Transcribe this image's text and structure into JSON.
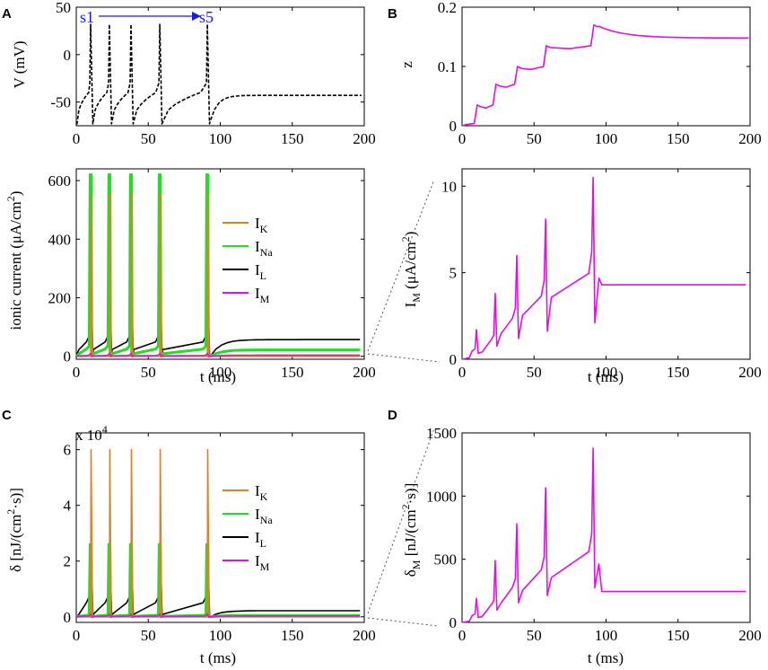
{
  "colors": {
    "IK": "#d9822b",
    "INa": "#22dd22",
    "IL": "#000000",
    "IM": "#e011e0",
    "annot": "#1a1aee",
    "V": "#000000"
  },
  "chart_data": [
    {
      "id": "A_top",
      "panel": "A",
      "type": "line",
      "title": "",
      "xlabel": "",
      "ylabel": "V (mV)",
      "xlim": [
        0,
        200
      ],
      "ylim": [
        -75,
        50
      ],
      "xticks": [
        "0",
        "50",
        "100",
        "150",
        "200"
      ],
      "yticks": [
        "-50",
        "0",
        "50"
      ],
      "spike_times": [
        10,
        23,
        38,
        58,
        91
      ],
      "series": [
        {
          "name": "V",
          "style": "dashed",
          "peak": 32,
          "trough": -73,
          "rest": -43
        }
      ],
      "annotation": {
        "start": "s1",
        "end": "s5"
      }
    },
    {
      "id": "A_bottom",
      "panel": "A",
      "type": "line",
      "xlabel": "t (ms)",
      "ylabel": "ionic current (μA/cm²)",
      "ylabel_parts": [
        "ionic current (",
        "μ",
        "A/cm",
        "2",
        ")"
      ],
      "xlim": [
        0,
        200
      ],
      "ylim": [
        -10,
        640
      ],
      "xticks": [
        "0",
        "50",
        "100",
        "150",
        "200"
      ],
      "yticks": [
        "0",
        "200",
        "400",
        "600"
      ],
      "series": [
        {
          "name": "IK",
          "label": "I",
          "sub": "K",
          "peak": 555,
          "steady": 0
        },
        {
          "name": "INa",
          "label": "I",
          "sub": "Na",
          "peak": 620,
          "steady": 22
        },
        {
          "name": "IL",
          "label": "I",
          "sub": "L",
          "peak": 200,
          "steady": 57
        },
        {
          "name": "IM",
          "label": "I",
          "sub": "M",
          "peak": 10,
          "steady": 4
        }
      ]
    },
    {
      "id": "B_top",
      "panel": "B",
      "type": "line",
      "xlabel": "",
      "ylabel": "z",
      "xlim": [
        0,
        200
      ],
      "ylim": [
        0,
        0.2
      ],
      "xticks": [
        "0",
        "50",
        "100",
        "150",
        "200"
      ],
      "yticks": [
        "0",
        "0.1",
        "0.2"
      ],
      "series": [
        {
          "name": "z",
          "steps": [
            0.035,
            0.07,
            0.1,
            0.135,
            0.17
          ],
          "final": 0.148
        }
      ]
    },
    {
      "id": "B_bottom",
      "panel": "B",
      "type": "line",
      "xlabel": "t (ms)",
      "ylabel": "IM (μA/cm²)",
      "ylabel_parts": [
        "I",
        "M",
        " (",
        "μ",
        "A/cm",
        "2",
        ")"
      ],
      "xlim": [
        0,
        200
      ],
      "ylim": [
        0,
        11
      ],
      "xticks": [
        "0",
        "50",
        "100",
        "150",
        "200"
      ],
      "yticks": [
        "0",
        "5",
        "10"
      ],
      "series": [
        {
          "name": "IM",
          "peaks": [
            1.7,
            3.8,
            6.0,
            8.1,
            10.5
          ],
          "final": 4.3
        }
      ]
    },
    {
      "id": "C",
      "panel": "C",
      "type": "line",
      "xlabel": "t (ms)",
      "ylabel": "δ [nJ/(cm²·s)]",
      "ylabel_parts": [
        "δ [nJ/(cm",
        "2",
        "·s)]"
      ],
      "multiplier": "x 10^4",
      "multiplier_parts": [
        "x 10",
        "4"
      ],
      "xlim": [
        0,
        200
      ],
      "ylim": [
        -0.2,
        6.6
      ],
      "xticks": [
        "0",
        "50",
        "100",
        "150",
        "200"
      ],
      "yticks": [
        "0",
        "2",
        "4",
        "6"
      ],
      "series": [
        {
          "name": "IK",
          "label": "I",
          "sub": "K",
          "peak": 6.0,
          "steady": 0
        },
        {
          "name": "INa",
          "label": "I",
          "sub": "Na",
          "peak": 2.6,
          "steady": 0.05
        },
        {
          "name": "IL",
          "label": "I",
          "sub": "L",
          "peak": 2.05,
          "steady": 0.22
        },
        {
          "name": "IM",
          "label": "I",
          "sub": "M",
          "peak": 0.1,
          "steady": 0.03
        }
      ]
    },
    {
      "id": "D",
      "panel": "D",
      "type": "line",
      "xlabel": "t (ms)",
      "ylabel": "δM [nJ/(cm²·s)]",
      "ylabel_parts": [
        "δ",
        "M",
        " [nJ/(cm",
        "2",
        "·s)]"
      ],
      "xlim": [
        0,
        200
      ],
      "ylim": [
        0,
        1500
      ],
      "xticks": [
        "0",
        "50",
        "100",
        "150",
        "200"
      ],
      "yticks": [
        "0",
        "500",
        "1000",
        "1500"
      ],
      "series": [
        {
          "name": "IM",
          "peaks": [
            190,
            490,
            780,
            1065,
            1380
          ],
          "final": 245
        }
      ]
    }
  ],
  "panel_labels": {
    "A": "A",
    "B": "B",
    "C": "C",
    "D": "D"
  }
}
